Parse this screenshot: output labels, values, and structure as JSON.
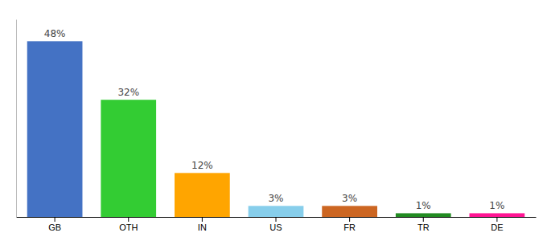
{
  "chart_data": {
    "type": "bar",
    "categories": [
      "GB",
      "OTH",
      "IN",
      "US",
      "FR",
      "TR",
      "DE"
    ],
    "values": [
      48,
      32,
      12,
      3,
      3,
      1,
      1
    ],
    "value_labels": [
      "48%",
      "32%",
      "12%",
      "3%",
      "3%",
      "1%",
      "1%"
    ],
    "colors": [
      "#4472C4",
      "#33CC33",
      "#FFA500",
      "#87CEEB",
      "#CC6622",
      "#228B22",
      "#FF1493"
    ],
    "ylim": [
      0,
      54
    ],
    "data_labels": true,
    "tick_labels": "x",
    "grid": false
  }
}
